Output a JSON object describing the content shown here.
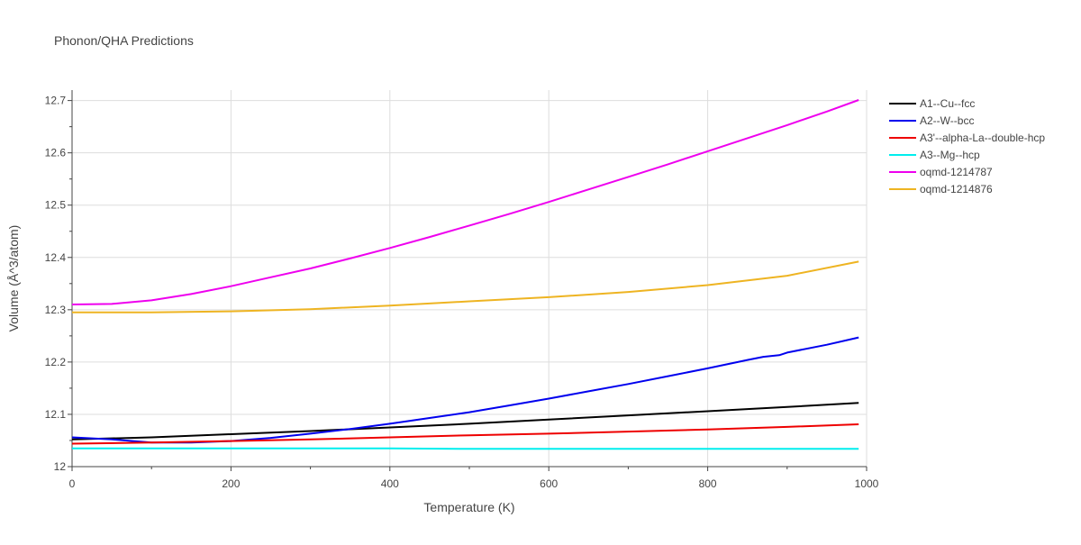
{
  "chart_data": {
    "type": "line",
    "title": "Phonon/QHA Predictions",
    "xlabel": "Temperature (K)",
    "ylabel": "Volume (Å^3/atom)",
    "xlim": [
      0,
      1000
    ],
    "ylim": [
      12.0,
      12.72
    ],
    "xticks": [
      0,
      200,
      400,
      600,
      800,
      1000
    ],
    "xtick_labels": [
      "0",
      "200",
      "400",
      "600",
      "800",
      "1000"
    ],
    "yticks": [
      12.0,
      12.1,
      12.2,
      12.3,
      12.4,
      12.5,
      12.6,
      12.7
    ],
    "ytick_labels": [
      "12",
      "12.1",
      "12.2",
      "12.3",
      "12.4",
      "12.5",
      "12.6",
      "12.7"
    ],
    "grid": true,
    "legend_position": "top-right",
    "series": [
      {
        "name": "A1--Cu--fcc",
        "color": "#000000",
        "x": [
          0,
          100,
          200,
          300,
          400,
          500,
          600,
          700,
          800,
          900,
          990
        ],
        "y": [
          12.052,
          12.056,
          12.062,
          12.068,
          12.075,
          12.082,
          12.09,
          12.098,
          12.106,
          12.114,
          12.122
        ]
      },
      {
        "name": "A2--W--bcc",
        "color": "#0000ee",
        "x": [
          0,
          50,
          100,
          150,
          200,
          250,
          300,
          350,
          400,
          450,
          500,
          550,
          600,
          650,
          700,
          750,
          800,
          850,
          870,
          890,
          900,
          950,
          990
        ],
        "y": [
          12.056,
          12.052,
          12.046,
          12.046,
          12.049,
          12.055,
          12.063,
          12.072,
          12.082,
          12.093,
          12.104,
          12.117,
          12.13,
          12.144,
          12.158,
          12.173,
          12.188,
          12.204,
          12.21,
          12.213,
          12.218,
          12.233,
          12.247
        ]
      },
      {
        "name": "A3'--alpha-La--double-hcp",
        "color": "#ee0000",
        "x": [
          0,
          100,
          200,
          300,
          400,
          500,
          600,
          700,
          800,
          900,
          990
        ],
        "y": [
          12.044,
          12.046,
          12.049,
          12.052,
          12.056,
          12.06,
          12.063,
          12.067,
          12.071,
          12.076,
          12.081
        ]
      },
      {
        "name": "A3--Mg--hcp",
        "color": "#00eeee",
        "x": [
          0,
          100,
          200,
          300,
          400,
          500,
          600,
          700,
          800,
          900,
          990
        ],
        "y": [
          12.035,
          12.035,
          12.035,
          12.035,
          12.035,
          12.034,
          12.034,
          12.034,
          12.034,
          12.034,
          12.034
        ]
      },
      {
        "name": "oqmd-1214787",
        "color": "#ee00ee",
        "x": [
          0,
          50,
          100,
          150,
          200,
          250,
          300,
          350,
          400,
          450,
          500,
          550,
          600,
          650,
          700,
          750,
          800,
          850,
          900,
          950,
          990
        ],
        "y": [
          12.31,
          12.311,
          12.318,
          12.33,
          12.345,
          12.362,
          12.379,
          12.398,
          12.418,
          12.439,
          12.461,
          12.483,
          12.506,
          12.53,
          12.554,
          12.578,
          12.603,
          12.628,
          12.653,
          12.679,
          12.701
        ]
      },
      {
        "name": "oqmd-1214876",
        "color": "#eeb422",
        "x": [
          0,
          100,
          200,
          300,
          400,
          500,
          600,
          700,
          800,
          900,
          990
        ],
        "y": [
          12.295,
          12.295,
          12.297,
          12.301,
          12.308,
          12.316,
          12.324,
          12.334,
          12.347,
          12.365,
          12.392
        ]
      }
    ]
  }
}
